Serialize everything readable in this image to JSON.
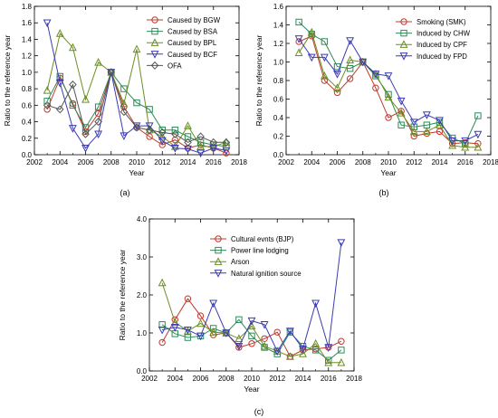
{
  "chart_data": [
    {
      "type": "line",
      "panel_label": "(a)",
      "xlabel": "Year",
      "ylabel": "Ratio to the reference year",
      "xlim": [
        2002,
        2018
      ],
      "ylim": [
        0,
        1.8
      ],
      "xticks": [
        2002,
        2004,
        2006,
        2008,
        2010,
        2012,
        2014,
        2016,
        2018
      ],
      "xtick_labels": [
        "2002",
        "2004",
        "2006",
        "2008",
        "2010",
        "2012",
        "2014",
        "2016",
        "2018"
      ],
      "yticks": [
        0,
        0.2,
        0.4,
        0.6,
        0.8,
        1.0,
        1.2,
        1.4,
        1.6,
        1.8
      ],
      "ytick_labels": [
        "0.0",
        "0.2",
        "0.4",
        "0.6",
        "0.8",
        "1.0",
        "1.2",
        "1.4",
        "1.6",
        "1.8"
      ],
      "legend_position": "top-right",
      "x": [
        2003,
        2004,
        2005,
        2006,
        2007,
        2008,
        2009,
        2010,
        2011,
        2012,
        2013,
        2014,
        2015,
        2016,
        2017
      ],
      "series": [
        {
          "name": "Caused by BGW",
          "marker": "circle",
          "color": "#c0392b",
          "values": [
            0.55,
            0.93,
            0.62,
            0.28,
            0.5,
            1.0,
            0.58,
            0.33,
            0.22,
            0.12,
            0.18,
            0.08,
            0.12,
            0.08,
            0.02
          ]
        },
        {
          "name": "Caused by BSA",
          "marker": "square",
          "color": "#2e8b57",
          "values": [
            0.65,
            0.95,
            0.6,
            0.33,
            0.58,
            1.0,
            0.8,
            0.63,
            0.55,
            0.3,
            0.3,
            0.22,
            0.15,
            0.12,
            0.1
          ]
        },
        {
          "name": "Caused by BPL",
          "marker": "triangle-up",
          "color": "#6b8e23",
          "values": [
            0.78,
            1.47,
            1.3,
            0.67,
            1.12,
            1.0,
            0.62,
            1.28,
            0.3,
            0.22,
            0.1,
            0.35,
            0.1,
            0.1,
            0.15
          ]
        },
        {
          "name": "Caused by BCF",
          "marker": "triangle-down",
          "color": "#3b3bb3",
          "values": [
            1.6,
            0.87,
            0.32,
            0.08,
            0.25,
            1.0,
            0.23,
            0.35,
            0.35,
            0.17,
            0.08,
            0.07,
            0.02,
            0.08,
            0.05
          ]
        },
        {
          "name": "OFA",
          "marker": "diamond",
          "color": "#555555",
          "values": [
            0.6,
            0.55,
            0.85,
            0.25,
            0.4,
            1.0,
            0.52,
            0.33,
            0.3,
            0.27,
            0.25,
            0.15,
            0.22,
            0.15,
            0.15
          ]
        }
      ]
    },
    {
      "type": "line",
      "panel_label": "(b)",
      "xlabel": "Year",
      "ylabel": "Ratio to the reference year",
      "xlim": [
        2002,
        2018
      ],
      "ylim": [
        0,
        1.6
      ],
      "xticks": [
        2002,
        2004,
        2006,
        2008,
        2010,
        2012,
        2014,
        2016,
        2018
      ],
      "xtick_labels": [
        "2002",
        "2004",
        "2006",
        "2008",
        "2010",
        "2012",
        "2014",
        "2016",
        "2018"
      ],
      "yticks": [
        0,
        0.2,
        0.4,
        0.6,
        0.8,
        1.0,
        1.2,
        1.4,
        1.6
      ],
      "ytick_labels": [
        "0.0",
        "0.2",
        "0.4",
        "0.6",
        "0.8",
        "1.0",
        "1.2",
        "1.4",
        "1.6"
      ],
      "legend_position": "top-right",
      "x": [
        2003,
        2004,
        2005,
        2006,
        2007,
        2008,
        2009,
        2010,
        2011,
        2012,
        2013,
        2014,
        2015,
        2016,
        2017
      ],
      "series": [
        {
          "name": "Smoking (SMK)",
          "marker": "circle",
          "color": "#c0392b",
          "values": [
            1.22,
            1.28,
            0.8,
            0.67,
            0.82,
            1.0,
            0.72,
            0.4,
            0.47,
            0.2,
            0.23,
            0.25,
            0.12,
            0.13,
            0.12
          ]
        },
        {
          "name": "Induced by CHW",
          "marker": "square",
          "color": "#2e8b57",
          "values": [
            1.43,
            1.3,
            1.22,
            0.95,
            0.93,
            1.0,
            0.85,
            0.65,
            0.32,
            0.3,
            0.32,
            0.35,
            0.18,
            0.12,
            0.42
          ]
        },
        {
          "name": "Induced by CPF",
          "marker": "triangle-up",
          "color": "#6b8e23",
          "values": [
            1.1,
            1.32,
            0.85,
            0.72,
            1.02,
            1.0,
            0.87,
            0.62,
            0.45,
            0.25,
            0.25,
            0.32,
            0.1,
            0.08,
            0.08
          ]
        },
        {
          "name": "Induced by FPD",
          "marker": "triangle-down",
          "color": "#3b3bb3",
          "values": [
            1.25,
            1.05,
            1.05,
            0.87,
            1.23,
            1.0,
            0.87,
            0.85,
            0.58,
            0.35,
            0.43,
            0.37,
            0.15,
            0.15,
            0.22
          ]
        }
      ]
    },
    {
      "type": "line",
      "panel_label": "(c)",
      "xlabel": "Year",
      "ylabel": "Ratio to the reference year",
      "xlim": [
        2002,
        2018
      ],
      "ylim": [
        0,
        4.0
      ],
      "xticks": [
        2002,
        2004,
        2006,
        2008,
        2010,
        2012,
        2014,
        2016,
        2018
      ],
      "xtick_labels": [
        "2002",
        "2004",
        "2006",
        "2008",
        "2010",
        "2012",
        "2014",
        "2016",
        "2018"
      ],
      "yticks": [
        0,
        1,
        2,
        3,
        4
      ],
      "ytick_labels": [
        "0.0",
        "1.0",
        "2.0",
        "3.0",
        "4.0"
      ],
      "legend_position": "top-left",
      "x": [
        2003,
        2004,
        2005,
        2006,
        2007,
        2008,
        2009,
        2010,
        2011,
        2012,
        2013,
        2014,
        2015,
        2016,
        2017
      ],
      "series": [
        {
          "name": "Cultural evnts (BJP)",
          "marker": "circle",
          "color": "#c0392b",
          "values": [
            0.75,
            1.35,
            1.9,
            1.45,
            0.95,
            1.0,
            0.62,
            0.72,
            0.85,
            1.02,
            0.38,
            0.55,
            0.58,
            0.62,
            0.78
          ]
        },
        {
          "name": "Power line lodging",
          "marker": "square",
          "color": "#2e8b57",
          "values": [
            1.22,
            0.98,
            0.88,
            0.92,
            1.12,
            1.0,
            1.35,
            0.92,
            0.62,
            0.45,
            1.02,
            0.65,
            0.55,
            0.28,
            0.55
          ]
        },
        {
          "name": "Arson",
          "marker": "triangle-up",
          "color": "#6b8e23",
          "values": [
            2.32,
            1.28,
            1.05,
            1.25,
            1.02,
            1.0,
            0.85,
            1.18,
            0.65,
            0.52,
            0.38,
            0.45,
            0.72,
            0.22,
            0.22
          ]
        },
        {
          "name": "Natural ignition source",
          "marker": "triangle-down",
          "color": "#3b3bb3",
          "values": [
            1.08,
            1.15,
            1.08,
            0.92,
            1.78,
            1.0,
            0.65,
            1.32,
            1.22,
            0.52,
            1.05,
            0.58,
            1.78,
            0.62,
            3.38
          ]
        }
      ]
    }
  ]
}
